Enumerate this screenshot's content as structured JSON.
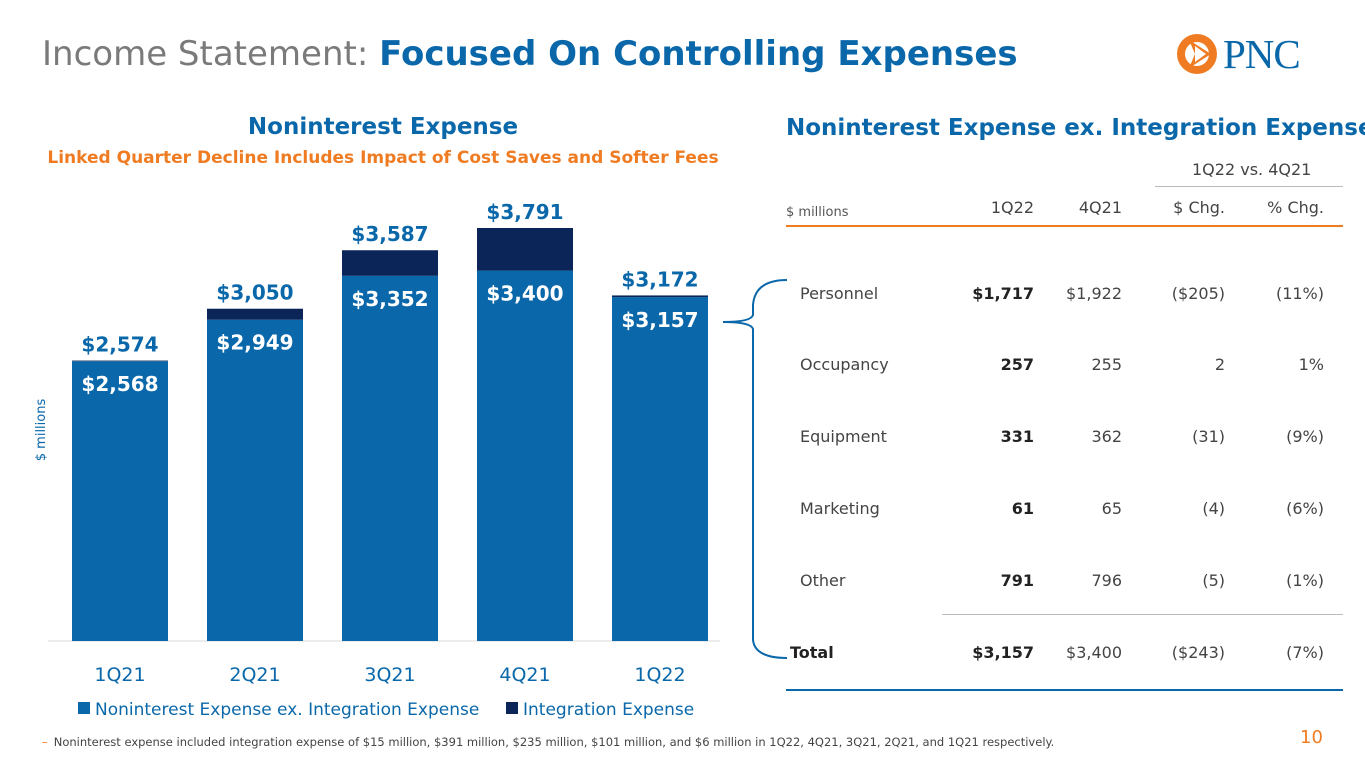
{
  "header": {
    "title_prefix": "Income Statement:",
    "title_main": "Focused On Controlling Expenses",
    "logo_text": "PNC"
  },
  "chart_title": "Noninterest Expense",
  "chart_subtitle": "Linked Quarter Decline Includes Impact of Cost Saves and Softer Fees",
  "chart_data": {
    "type": "bar",
    "stacked": true,
    "categories": [
      "1Q21",
      "2Q21",
      "3Q21",
      "4Q21",
      "1Q22"
    ],
    "series": [
      {
        "name": "Noninterest Expense ex. Integration Expense",
        "values": [
          2568,
          2949,
          3352,
          3400,
          3157
        ],
        "labels": [
          "$2,568",
          "$2,949",
          "$3,352",
          "$3,400",
          "$3,157"
        ],
        "color": "#0a68aa"
      },
      {
        "name": "Integration Expense",
        "values": [
          6,
          101,
          235,
          391,
          15
        ],
        "color": "#0b2559"
      }
    ],
    "totals": [
      2574,
      3050,
      3587,
      3791,
      3172
    ],
    "total_labels": [
      "$2,574",
      "$3,050",
      "$3,587",
      "$3,791",
      "$3,172"
    ],
    "ylabel": "$ millions",
    "ylim": [
      0,
      3791
    ],
    "legend_position": "bottom"
  },
  "table": {
    "title": "Noninterest Expense ex. Integration Expense",
    "group_header": "1Q22 vs. 4Q21",
    "unit_label": "$ millions",
    "columns": [
      "1Q22",
      "4Q21",
      "$ Chg.",
      "% Chg."
    ],
    "rows": [
      {
        "label": "Personnel",
        "cells": [
          "$1,717",
          "$1,922",
          "($205)",
          "(11%)"
        ]
      },
      {
        "label": "Occupancy",
        "cells": [
          "257",
          "255",
          "2",
          "1%"
        ]
      },
      {
        "label": "Equipment",
        "cells": [
          "331",
          "362",
          "(31)",
          "(9%)"
        ]
      },
      {
        "label": "Marketing",
        "cells": [
          "61",
          "65",
          "(4)",
          "(6%)"
        ]
      },
      {
        "label": "Other",
        "cells": [
          "791",
          "796",
          "(5)",
          "(1%)"
        ]
      }
    ],
    "total": {
      "label": "Total",
      "cells": [
        "$3,157",
        "$3,400",
        "($243)",
        "(7%)"
      ]
    }
  },
  "footnote": "Noninterest expense included integration expense of $15 million, $391 million, $235 million, $101 million, and $6 million in 1Q22, 4Q21, 3Q21, 2Q21, and 1Q21 respectively.",
  "footnote_marker": "–",
  "page_number": "10",
  "colors": {
    "brand_blue": "#0a68aa",
    "navy": "#0b2559",
    "orange": "#ef7c22"
  }
}
